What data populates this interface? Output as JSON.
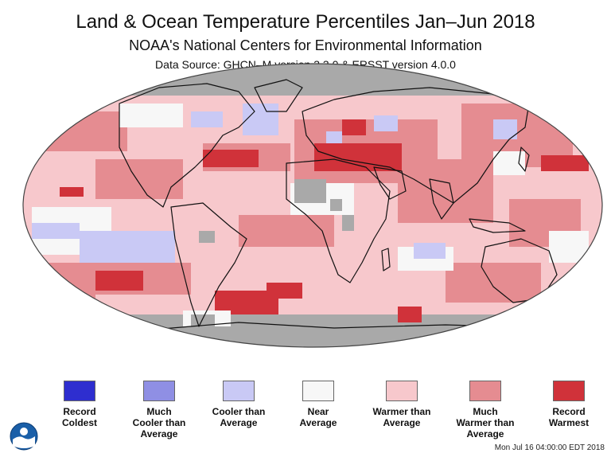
{
  "header": {
    "title": "Land & Ocean Temperature Percentiles Jan–Jun 2018",
    "subtitle": "NOAA's National Centers for Environmental Information",
    "source": "Data Source: GHCN–M version 3.3.0 & ERSST version 4.0.0"
  },
  "map": {
    "projection": "robinson",
    "no_data_color": "#a9a9a9",
    "border_color": "#111111"
  },
  "legend": [
    {
      "label": "Record\nColdest",
      "color": "#2e2ecf"
    },
    {
      "label": "Much\nCooler than\nAverage",
      "color": "#8f8fe4"
    },
    {
      "label": "Cooler than\nAverage",
      "color": "#c9c9f5"
    },
    {
      "label": "Near\nAverage",
      "color": "#f7f7f7"
    },
    {
      "label": "Warmer than\nAverage",
      "color": "#f7c8cc"
    },
    {
      "label": "Much\nWarmer than\nAverage",
      "color": "#e58c91"
    },
    {
      "label": "Record\nWarmest",
      "color": "#d0323a"
    }
  ],
  "footer": {
    "timestamp": "Mon Jul 16 04:00:00 EDT 2018",
    "logo": "noaa-logo"
  }
}
